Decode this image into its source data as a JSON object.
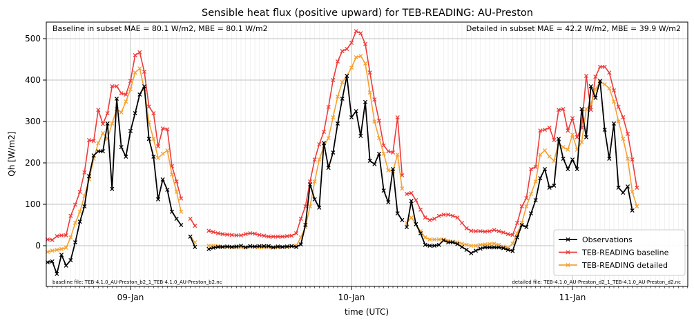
{
  "chart_data": {
    "type": "line",
    "title": "Sensible heat flux (positive upward) for TEB-READING: AU-Preston",
    "xlabel": "time (UTC)",
    "ylabel": "Qh [W/m2]",
    "ylim": [
      -95,
      545
    ],
    "xlim": [
      0,
      168
    ],
    "x_unit": "hours from 2010-01-08 00:00 UTC",
    "xticks": [
      {
        "x": 24,
        "label": "09-Jan"
      },
      {
        "x": 72,
        "label": "10-Jan"
      },
      {
        "x": 120,
        "label": "11-Jan"
      }
    ],
    "yticks": [
      0,
      100,
      200,
      300,
      400,
      500
    ],
    "grid": true,
    "legend_position": "lower-right",
    "annotations": {
      "top_left": "Baseline in subset MAE = 80.1 W/m2, MBE = 80.1 W/m2",
      "top_right": "Detailed in subset MAE = 42.2 W/m2, MBE = 39.9 W/m2",
      "bottom_left": "baseline file: TEB-4.1.0_AU-Preston_b2_1_TEB-4.1.0_AU-Preston_b2.nc",
      "bottom_right": "detailed file: TEB-4.1.0_AU-Preston_d2_1_TEB-4.1.0_AU-Preston_d2.nc"
    },
    "colors": {
      "observations": "#000000",
      "baseline": "#ee3a3a",
      "detailed": "#f5a030"
    },
    "series": [
      {
        "name": "Observations",
        "color": "#000000",
        "segments": [
          {
            "x0": 6,
            "dx": 1,
            "values": [
              -40,
              -38,
              -68,
              -22,
              -48,
              -35,
              8,
              58,
              95,
              168,
              218,
              228,
              228,
              295,
              137,
              355,
              238,
              215,
              277,
              320,
              365,
              385,
              258,
              215,
              112,
              160,
              135,
              82,
              65,
              50
            ]
          },
          {
            "x0": 37,
            "dx": 1,
            "values": [
              22,
              -3
            ]
          },
          {
            "x0": 41,
            "dx": 1,
            "values": [
              -8,
              -5,
              -3,
              -3,
              -2,
              -3,
              -2,
              0,
              -4,
              -1,
              -2,
              -1,
              -1,
              -1,
              -4,
              -2,
              -3,
              -2,
              -1,
              -3,
              3,
              50,
              148,
              112,
              92,
              248,
              188,
              225,
              295,
              355,
              410,
              310,
              325,
              265,
              347,
              205,
              197,
              222,
              133,
              105,
              185,
              78,
              62
            ]
          },
          {
            "x0": 84,
            "dx": 1,
            "values": [
              45,
              108,
              52,
              30,
              2,
              0,
              0,
              2,
              13,
              8,
              8,
              4,
              -3,
              -10,
              -18,
              -12,
              -7,
              -4,
              -4,
              -4,
              -4,
              -6,
              -10,
              -13,
              20,
              50,
              45,
              78,
              110,
              163,
              185,
              140,
              145,
              258,
              210,
              185,
              208,
              185,
              330,
              262,
              385,
              357,
              398,
              280,
              210,
              295,
              140,
              128,
              143,
              85
            ]
          }
        ]
      },
      {
        "name": "TEB-READING baseline",
        "color": "#ee3a3a",
        "segments": [
          {
            "x0": 6,
            "dx": 1,
            "values": [
              15,
              14,
              23,
              25,
              25,
              72,
              99,
              130,
              177,
              255,
              253,
              328,
              294,
              320,
              385,
              385,
              368,
              365,
              398,
              460,
              467,
              420,
              336,
              320,
              240,
              283,
              281,
              192,
              155,
              114
            ]
          },
          {
            "x0": 37,
            "dx": 1,
            "values": [
              65,
              48
            ]
          },
          {
            "x0": 41,
            "dx": 1,
            "values": [
              36,
              33,
              30,
              28,
              27,
              26,
              25,
              25,
              28,
              30,
              29,
              26,
              24,
              22,
              22,
              22,
              22,
              23,
              24,
              30,
              65,
              95,
              155,
              208,
              245,
              275,
              335,
              400,
              445,
              470,
              475,
              490,
              518,
              513,
              487,
              418,
              353,
              302,
              242,
              228,
              225,
              310,
              170
            ]
          },
          {
            "x0": 84,
            "dx": 1,
            "values": [
              125,
              127,
              110,
              87,
              68,
              62,
              65,
              72,
              75,
              75,
              72,
              68,
              55,
              42,
              36,
              35,
              35,
              34,
              35,
              38,
              35,
              32,
              28,
              26,
              55,
              95,
              115,
              185,
              190,
              278,
              280,
              285,
              255,
              328,
              330,
              278,
              308,
              262,
              285,
              410,
              328,
              408,
              432,
              432,
              418,
              375,
              335,
              310,
              270,
              208,
              140
            ]
          }
        ]
      },
      {
        "name": "TEB-READING detailed",
        "color": "#f5a030",
        "segments": [
          {
            "x0": 6,
            "dx": 1,
            "values": [
              -15,
              -12,
              -10,
              -8,
              -5,
              20,
              55,
              82,
              120,
              160,
              210,
              248,
              272,
              258,
              295,
              330,
              322,
              348,
              378,
              418,
              428,
              378,
              298,
              258,
              212,
              222,
              230,
              172,
              130,
              82
            ]
          },
          {
            "x0": 37,
            "dx": 1,
            "values": [
              22,
              8
            ]
          },
          {
            "x0": 41,
            "dx": 1,
            "values": [
              0,
              0,
              -1,
              -2,
              -3,
              -4,
              -4,
              -4,
              -4,
              -3,
              -3,
              -4,
              -4,
              -4,
              -4,
              -4,
              -3,
              -3,
              -2,
              0,
              20,
              45,
              95,
              155,
              208,
              240,
              260,
              310,
              360,
              395,
              410,
              430,
              455,
              458,
              440,
              370,
              300,
              260,
              222,
              182,
              180,
              220,
              138
            ]
          },
          {
            "x0": 84,
            "dx": 1,
            "values": [
              55,
              68,
              52,
              35,
              20,
              15,
              15,
              15,
              15,
              12,
              10,
              8,
              5,
              2,
              0,
              0,
              2,
              3,
              4,
              5,
              2,
              -2,
              -5,
              5,
              30,
              55,
              95,
              125,
              155,
              220,
              230,
              215,
              205,
              248,
              238,
              232,
              268,
              232,
              250,
              330,
              342,
              378,
              395,
              390,
              380,
              348,
              300,
              258,
              210,
              130,
              95
            ]
          }
        ]
      }
    ]
  }
}
